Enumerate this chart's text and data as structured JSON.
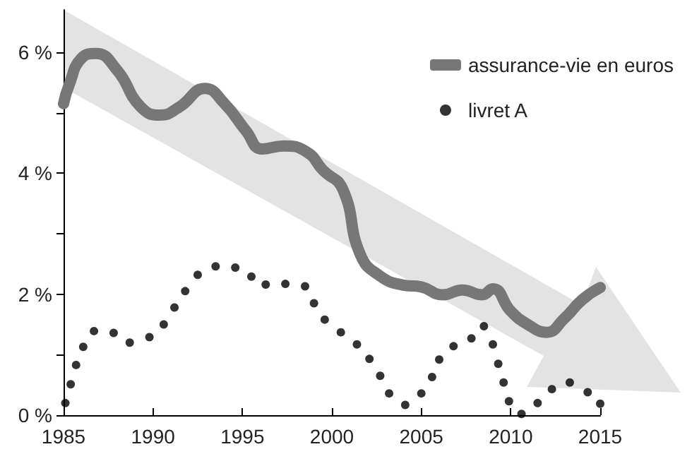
{
  "chart_data": {
    "type": "line",
    "xlim": [
      1985,
      2015
    ],
    "xticks": [
      1985,
      1990,
      1995,
      2000,
      2005,
      2010,
      2015
    ],
    "ylim": [
      0,
      6.7
    ],
    "yticks": [
      {
        "value": 0,
        "label": "0 %"
      },
      {
        "value": 1,
        "label": null
      },
      {
        "value": 2,
        "label": "2 %"
      },
      {
        "value": 3,
        "label": null
      },
      {
        "value": 4,
        "label": "4 %"
      },
      {
        "value": 5,
        "label": null
      },
      {
        "value": 6,
        "label": "6 %"
      }
    ],
    "legend": "top right",
    "series": [
      {
        "name": "assurance-vie en euros",
        "color": "#777777",
        "marker": "none",
        "x": [
          1985,
          1985.3,
          1986,
          1986.8,
          1988,
          1989.3,
          1990.4,
          1991.5,
          1992.9,
          1994,
          1995.2,
          1996.1,
          1997.3,
          1998.6,
          1999.5,
          2000.6,
          2001.6,
          2002.7,
          2004,
          2005,
          2006.2,
          2007.3,
          2008.4,
          2009,
          2010,
          2011,
          2012,
          2013,
          2014,
          2015
        ],
        "values": [
          5.15,
          5.45,
          5.9,
          5.98,
          5.7,
          5.1,
          4.96,
          5.1,
          5.4,
          5.15,
          4.7,
          4.4,
          4.45,
          4.35,
          4.05,
          3.74,
          2.65,
          2.3,
          2.15,
          2.12,
          1.99,
          2.07,
          1.99,
          2.09,
          1.72,
          1.49,
          1.37,
          1.6,
          1.91,
          2.11
        ]
      },
      {
        "name": "livret A",
        "type": "scatter",
        "color": "#000000",
        "marker": "circle",
        "x": [
          1985.1,
          1985.4,
          1985.7,
          1986.1,
          1986.7,
          1987.8,
          1988.7,
          1989.8,
          1990.6,
          1991.2,
          1991.8,
          1992.5,
          1993.5,
          1994.6,
          1995.5,
          1996.3,
          1997.4,
          1998.5,
          1999,
          1999.6,
          2000.5,
          2001.4,
          2002.1,
          2002.7,
          2003.2,
          2004.1,
          2005,
          2005.6,
          2006,
          2006.8,
          2007.8,
          2008.5,
          2009,
          2009.3,
          2009.6,
          2009.9,
          2010.6,
          2011.5,
          2012.3,
          2013.3,
          2014.3,
          2015
        ],
        "values": [
          0.2,
          0.51,
          0.83,
          1.13,
          1.39,
          1.36,
          1.2,
          1.29,
          1.5,
          1.78,
          2.05,
          2.32,
          2.46,
          2.44,
          2.29,
          2.16,
          2.17,
          2.13,
          1.85,
          1.58,
          1.37,
          1.17,
          0.93,
          0.65,
          0.36,
          0.17,
          0.36,
          0.63,
          0.92,
          1.14,
          1.27,
          1.47,
          1.17,
          0.85,
          0.54,
          0.23,
          0.02,
          0.2,
          0.43,
          0.54,
          0.38,
          0.19
        ]
      }
    ]
  }
}
